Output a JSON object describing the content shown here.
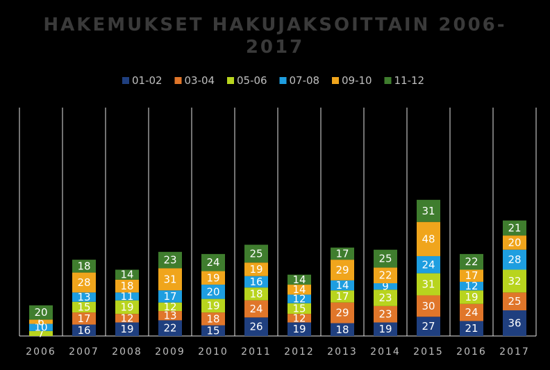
{
  "chart_data": {
    "type": "bar",
    "stacked": true,
    "title_line1": "HAKEMUKSET HAKUJAKSOITTAIN 2006-",
    "title_line2": "2017",
    "categories": [
      "2006",
      "2007",
      "2008",
      "2009",
      "2010",
      "2011",
      "2012",
      "2013",
      "2014",
      "2015",
      "2016",
      "2017"
    ],
    "series": [
      {
        "name": "01-02",
        "color": "#1f3f7f",
        "values": [
          null,
          16,
          19,
          22,
          15,
          26,
          19,
          18,
          19,
          27,
          21,
          36
        ]
      },
      {
        "name": "03-04",
        "color": "#e0762a",
        "values": [
          null,
          17,
          12,
          13,
          18,
          24,
          12,
          29,
          23,
          30,
          24,
          25
        ]
      },
      {
        "name": "05-06",
        "color": "#b8d41e",
        "values": [
          7,
          15,
          19,
          12,
          19,
          18,
          15,
          17,
          23,
          31,
          19,
          32
        ]
      },
      {
        "name": "07-08",
        "color": "#1e9ee0",
        "values": [
          10,
          13,
          11,
          17,
          20,
          16,
          12,
          14,
          9,
          24,
          12,
          28
        ]
      },
      {
        "name": "09-10",
        "color": "#f0a51c",
        "values": [
          6,
          28,
          18,
          31,
          19,
          19,
          14,
          29,
          22,
          48,
          17,
          20
        ]
      },
      {
        "name": "11-12",
        "color": "#3f7d2e",
        "values": [
          20,
          18,
          14,
          23,
          24,
          25,
          14,
          17,
          25,
          31,
          22,
          21
        ]
      }
    ],
    "ylim": [
      0,
      250
    ],
    "legend_position": "top",
    "grid": "vertical"
  }
}
